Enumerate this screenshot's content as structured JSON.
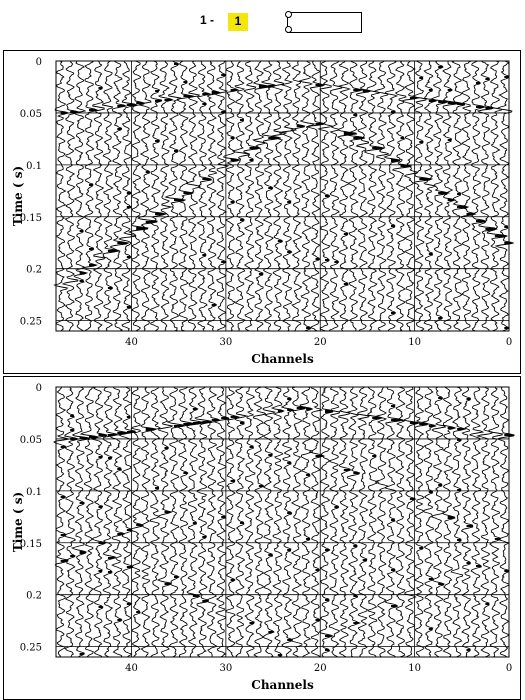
{
  "pager": {
    "prefix": "1 -",
    "current": "1"
  },
  "panels": [
    {
      "title": "",
      "xlabel": "Channels",
      "ylabel": "Time ( s)",
      "xticks": [
        "40",
        "30",
        "20",
        "10",
        "0"
      ],
      "yticks": [
        "0",
        "0.05",
        "0.1",
        "0.15",
        "0.2",
        "0.25"
      ],
      "variant": "raw"
    },
    {
      "title": "",
      "xlabel": "Channels",
      "ylabel": "Time ( s)",
      "xticks": [
        "40",
        "30",
        "20",
        "10",
        "0"
      ],
      "yticks": [
        "0",
        "0.05",
        "0.1",
        "0.15",
        "0.2",
        "0.25"
      ],
      "variant": "filtered"
    }
  ],
  "chart_data": [
    {
      "type": "seismic-wiggle",
      "xlabel": "Channels",
      "ylabel": "Time ( s)",
      "xlim": [
        48,
        0
      ],
      "ylim": [
        0,
        0.26
      ],
      "x_ticks": [
        40,
        30,
        20,
        10,
        0
      ],
      "y_ticks": [
        0,
        0.05,
        0.1,
        0.15,
        0.2,
        0.25
      ],
      "grid": true,
      "events": [
        {
          "kind": "direct",
          "apex_channel": 23,
          "apex_time": 0.02,
          "edge_time": 0.05
        },
        {
          "kind": "hyperbola",
          "apex_channel": 21,
          "apex_time": 0.06,
          "edge_time": 0.225
        }
      ]
    },
    {
      "type": "seismic-wiggle",
      "xlabel": "Channels",
      "ylabel": "Time ( s)",
      "xlim": [
        48,
        0
      ],
      "ylim": [
        0,
        0.26
      ],
      "x_ticks": [
        40,
        30,
        20,
        10,
        0
      ],
      "y_ticks": [
        0,
        0.05,
        0.1,
        0.15,
        0.2,
        0.25
      ],
      "grid": true,
      "events": [
        {
          "kind": "direct",
          "apex_channel": 22,
          "apex_time": 0.02,
          "edge_time": 0.05
        }
      ]
    }
  ]
}
